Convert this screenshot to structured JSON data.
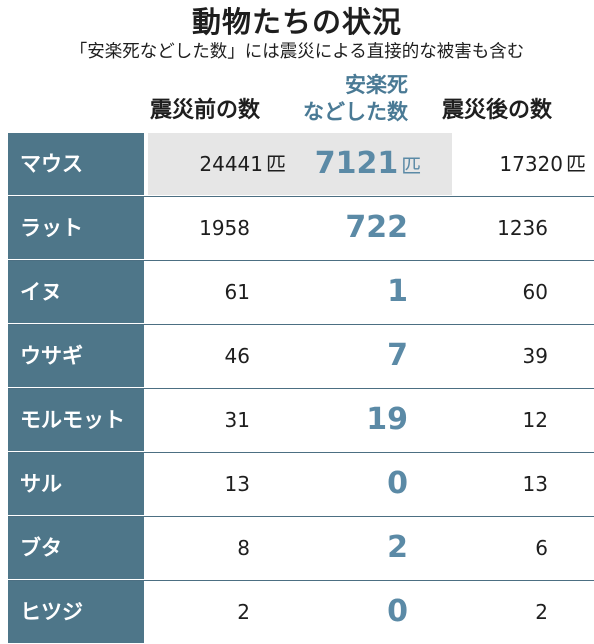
{
  "title": "動物たちの状況",
  "subtitle": "「安楽死などした数」には震災による直接的な被害も含む",
  "headers": {
    "before": "震災前の数",
    "euthanized_line1": "安楽死",
    "euthanized_line2": "などした数",
    "after": "震災後の数"
  },
  "unit": "匹",
  "colors": {
    "name_column": "#4e7689",
    "highlight_number": "#5b8aa6",
    "mouse_band": "#e6e6e6"
  },
  "rows": [
    {
      "animal": "マウス",
      "before": "24441",
      "euthanized": "7121",
      "after": "17320"
    },
    {
      "animal": "ラット",
      "before": "1958",
      "euthanized": "722",
      "after": "1236"
    },
    {
      "animal": "イヌ",
      "before": "61",
      "euthanized": "1",
      "after": "60"
    },
    {
      "animal": "ウサギ",
      "before": "46",
      "euthanized": "7",
      "after": "39"
    },
    {
      "animal": "モルモット",
      "before": "31",
      "euthanized": "19",
      "after": "12"
    },
    {
      "animal": "サル",
      "before": "13",
      "euthanized": "0",
      "after": "13"
    },
    {
      "animal": "ブタ",
      "before": "8",
      "euthanized": "2",
      "after": "6"
    },
    {
      "animal": "ヒツジ",
      "before": "2",
      "euthanized": "0",
      "after": "2"
    }
  ]
}
